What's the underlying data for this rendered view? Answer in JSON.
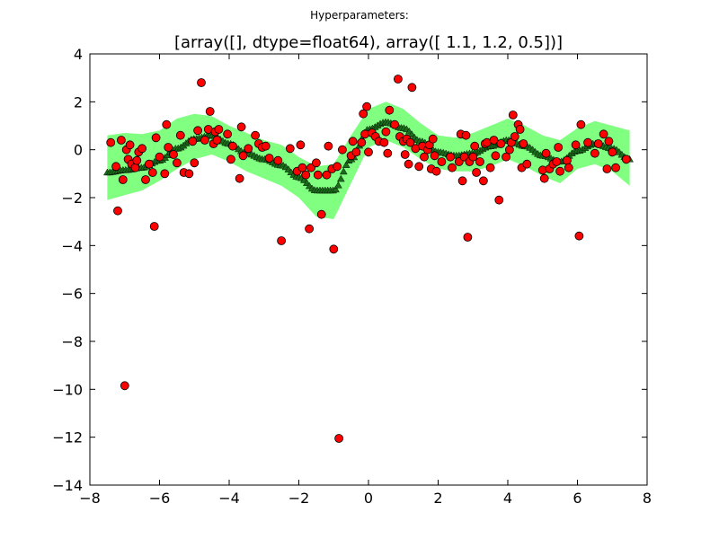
{
  "figure": {
    "suptitle": "Hyperparameters:",
    "title": "[array([], dtype=float64), array([ 1.1,  1.2,  0.5])]"
  },
  "chart_data": {
    "type": "scatter",
    "xlim": [
      -8,
      8
    ],
    "ylim": [
      -14,
      4
    ],
    "xticks": [
      -8,
      -6,
      -4,
      -2,
      0,
      2,
      4,
      6,
      8
    ],
    "xtick_labels": [
      "−8",
      "−6",
      "−4",
      "−2",
      "0",
      "2",
      "4",
      "6",
      "8"
    ],
    "yticks": [
      4,
      2,
      0,
      -2,
      -4,
      -6,
      -8,
      -10,
      -12,
      -14
    ],
    "ytick_labels": [
      "4",
      "2",
      "0",
      "−2",
      "−4",
      "−6",
      "−8",
      "−10",
      "−12",
      "−14"
    ],
    "grid": false,
    "band_color": "#80ff80",
    "prediction_color": "#1a6b1a",
    "point_color": "#ff0000",
    "band": {
      "x": [
        -7.5,
        -7.0,
        -6.5,
        -6.0,
        -5.5,
        -5.0,
        -4.5,
        -4.0,
        -3.5,
        -3.0,
        -2.5,
        -2.0,
        -1.5,
        -1.0,
        -0.5,
        0.0,
        0.5,
        1.0,
        1.5,
        2.0,
        2.5,
        3.0,
        3.5,
        4.0,
        4.5,
        5.0,
        5.5,
        6.0,
        6.5,
        7.0,
        7.5
      ],
      "upper": [
        0.6,
        0.7,
        0.65,
        0.8,
        1.3,
        1.5,
        1.4,
        1.0,
        0.7,
        0.4,
        0.2,
        -0.3,
        -0.7,
        -0.6,
        0.6,
        1.7,
        2.0,
        1.7,
        1.1,
        0.6,
        0.5,
        0.7,
        1.0,
        1.3,
        1.0,
        0.6,
        0.4,
        0.9,
        1.2,
        1.0,
        0.8
      ],
      "lower": [
        -2.1,
        -1.9,
        -1.7,
        -1.3,
        -0.8,
        -0.4,
        -0.2,
        -0.5,
        -0.9,
        -1.2,
        -1.5,
        -2.0,
        -2.8,
        -2.9,
        -1.4,
        0.1,
        0.4,
        0.1,
        -0.4,
        -0.8,
        -0.9,
        -0.9,
        -0.7,
        -0.4,
        -0.7,
        -1.1,
        -1.4,
        -0.8,
        -0.6,
        -0.9,
        -1.5
      ]
    },
    "prediction": {
      "x": [
        -7.5,
        -7.0,
        -6.5,
        -6.0,
        -5.5,
        -5.0,
        -4.5,
        -4.0,
        -3.5,
        -3.0,
        -2.5,
        -2.0,
        -1.5,
        -1.0,
        -0.5,
        0.0,
        0.5,
        1.0,
        1.5,
        2.0,
        2.5,
        3.0,
        3.5,
        4.0,
        4.5,
        5.0,
        5.5,
        6.0,
        6.5,
        7.0,
        7.5
      ],
      "y": [
        -0.95,
        -0.85,
        -0.75,
        -0.45,
        0.05,
        0.45,
        0.6,
        0.25,
        -0.15,
        -0.4,
        -0.65,
        -1.15,
        -1.7,
        -1.7,
        -0.4,
        0.85,
        1.15,
        0.9,
        0.35,
        -0.1,
        -0.25,
        -0.15,
        0.15,
        0.4,
        0.15,
        -0.25,
        -0.5,
        -0.05,
        0.25,
        0.05,
        -0.4
      ]
    },
    "points": [
      {
        "x": -7.4,
        "y": 0.3
      },
      {
        "x": -7.25,
        "y": -0.7
      },
      {
        "x": -7.2,
        "y": -2.55
      },
      {
        "x": -7.1,
        "y": 0.4
      },
      {
        "x": -7.05,
        "y": -1.25
      },
      {
        "x": -7.0,
        "y": -9.85
      },
      {
        "x": -6.95,
        "y": 0.0
      },
      {
        "x": -6.9,
        "y": -0.4
      },
      {
        "x": -6.85,
        "y": 0.2
      },
      {
        "x": -6.8,
        "y": -0.6
      },
      {
        "x": -6.7,
        "y": -0.75
      },
      {
        "x": -6.65,
        "y": -0.45
      },
      {
        "x": -6.6,
        "y": -0.1
      },
      {
        "x": -6.5,
        "y": 0.05
      },
      {
        "x": -6.4,
        "y": -1.25
      },
      {
        "x": -6.3,
        "y": -0.6
      },
      {
        "x": -6.2,
        "y": -0.95
      },
      {
        "x": -6.15,
        "y": -3.2
      },
      {
        "x": -6.1,
        "y": 0.5
      },
      {
        "x": -6.0,
        "y": -0.3
      },
      {
        "x": -5.85,
        "y": -1.0
      },
      {
        "x": -5.8,
        "y": 1.05
      },
      {
        "x": -5.75,
        "y": 0.1
      },
      {
        "x": -5.6,
        "y": -0.2
      },
      {
        "x": -5.5,
        "y": -0.55
      },
      {
        "x": -5.4,
        "y": 0.6
      },
      {
        "x": -5.3,
        "y": -0.95
      },
      {
        "x": -5.15,
        "y": -1.0
      },
      {
        "x": -5.05,
        "y": 0.35
      },
      {
        "x": -5.0,
        "y": -0.55
      },
      {
        "x": -4.9,
        "y": 0.8
      },
      {
        "x": -4.8,
        "y": 2.8
      },
      {
        "x": -4.7,
        "y": 0.4
      },
      {
        "x": -4.6,
        "y": 0.85
      },
      {
        "x": -4.55,
        "y": 1.6
      },
      {
        "x": -4.45,
        "y": 0.25
      },
      {
        "x": -4.4,
        "y": 0.75
      },
      {
        "x": -4.35,
        "y": 0.4
      },
      {
        "x": -4.3,
        "y": 0.85
      },
      {
        "x": -4.05,
        "y": 0.65
      },
      {
        "x": -3.95,
        "y": -0.4
      },
      {
        "x": -3.9,
        "y": 0.15
      },
      {
        "x": -3.7,
        "y": -1.2
      },
      {
        "x": -3.65,
        "y": 0.95
      },
      {
        "x": -3.6,
        "y": -0.25
      },
      {
        "x": -3.45,
        "y": 0.05
      },
      {
        "x": -3.25,
        "y": 0.6
      },
      {
        "x": -3.15,
        "y": 0.25
      },
      {
        "x": -3.05,
        "y": 0.1
      },
      {
        "x": -2.95,
        "y": 0.15
      },
      {
        "x": -2.85,
        "y": -0.35
      },
      {
        "x": -2.6,
        "y": -0.45
      },
      {
        "x": -2.5,
        "y": -3.8
      },
      {
        "x": -2.25,
        "y": 0.05
      },
      {
        "x": -2.05,
        "y": -0.9
      },
      {
        "x": -1.95,
        "y": 0.2
      },
      {
        "x": -1.9,
        "y": -0.75
      },
      {
        "x": -1.8,
        "y": -1.05
      },
      {
        "x": -1.7,
        "y": -3.3
      },
      {
        "x": -1.65,
        "y": -0.75
      },
      {
        "x": -1.5,
        "y": -0.55
      },
      {
        "x": -1.45,
        "y": -1.05
      },
      {
        "x": -1.35,
        "y": -2.7
      },
      {
        "x": -1.2,
        "y": -1.05
      },
      {
        "x": -1.15,
        "y": 0.15
      },
      {
        "x": -1.05,
        "y": -0.8
      },
      {
        "x": -1.0,
        "y": -4.15
      },
      {
        "x": -0.9,
        "y": -0.7
      },
      {
        "x": -0.85,
        "y": -12.05
      },
      {
        "x": -0.75,
        "y": 0.0
      },
      {
        "x": -0.5,
        "y": -0.25
      },
      {
        "x": -0.45,
        "y": 0.35
      },
      {
        "x": -0.35,
        "y": -0.1
      },
      {
        "x": -0.2,
        "y": 0.3
      },
      {
        "x": -0.15,
        "y": 1.5
      },
      {
        "x": -0.1,
        "y": 0.65
      },
      {
        "x": -0.05,
        "y": 1.8
      },
      {
        "x": 0.0,
        "y": -0.1
      },
      {
        "x": 0.1,
        "y": 0.7
      },
      {
        "x": 0.2,
        "y": 0.55
      },
      {
        "x": 0.3,
        "y": 0.35
      },
      {
        "x": 0.45,
        "y": 0.3
      },
      {
        "x": 0.5,
        "y": 0.75
      },
      {
        "x": 0.55,
        "y": -0.15
      },
      {
        "x": 0.6,
        "y": 1.65
      },
      {
        "x": 0.75,
        "y": 1.05
      },
      {
        "x": 0.85,
        "y": 2.95
      },
      {
        "x": 0.9,
        "y": 0.55
      },
      {
        "x": 1.0,
        "y": 0.35
      },
      {
        "x": 1.05,
        "y": -0.2
      },
      {
        "x": 1.1,
        "y": 0.45
      },
      {
        "x": 1.15,
        "y": -0.6
      },
      {
        "x": 1.2,
        "y": 0.3
      },
      {
        "x": 1.25,
        "y": 2.6
      },
      {
        "x": 1.35,
        "y": 0.05
      },
      {
        "x": 1.45,
        "y": -0.7
      },
      {
        "x": 1.55,
        "y": 0.15
      },
      {
        "x": 1.6,
        "y": -0.3
      },
      {
        "x": 1.7,
        "y": 0.0
      },
      {
        "x": 1.75,
        "y": 0.2
      },
      {
        "x": 1.8,
        "y": -0.8
      },
      {
        "x": 1.85,
        "y": 0.45
      },
      {
        "x": 1.9,
        "y": -0.25
      },
      {
        "x": 1.95,
        "y": -0.9
      },
      {
        "x": 2.1,
        "y": -0.5
      },
      {
        "x": 2.35,
        "y": -0.3
      },
      {
        "x": 2.4,
        "y": -0.75
      },
      {
        "x": 2.6,
        "y": -0.5
      },
      {
        "x": 2.65,
        "y": 0.65
      },
      {
        "x": 2.7,
        "y": -1.3
      },
      {
        "x": 2.75,
        "y": -0.3
      },
      {
        "x": 2.8,
        "y": 0.6
      },
      {
        "x": 2.85,
        "y": -3.65
      },
      {
        "x": 2.9,
        "y": -0.5
      },
      {
        "x": 3.0,
        "y": -0.3
      },
      {
        "x": 3.05,
        "y": 0.15
      },
      {
        "x": 3.1,
        "y": -0.95
      },
      {
        "x": 3.2,
        "y": -0.5
      },
      {
        "x": 3.3,
        "y": -1.3
      },
      {
        "x": 3.35,
        "y": 0.25
      },
      {
        "x": 3.4,
        "y": 0.3
      },
      {
        "x": 3.5,
        "y": -0.75
      },
      {
        "x": 3.6,
        "y": 0.4
      },
      {
        "x": 3.65,
        "y": -0.25
      },
      {
        "x": 3.75,
        "y": -2.1
      },
      {
        "x": 3.8,
        "y": 0.25
      },
      {
        "x": 3.95,
        "y": -0.3
      },
      {
        "x": 4.05,
        "y": 0.0
      },
      {
        "x": 4.1,
        "y": 0.3
      },
      {
        "x": 4.15,
        "y": 1.45
      },
      {
        "x": 4.2,
        "y": 0.55
      },
      {
        "x": 4.3,
        "y": 1.05
      },
      {
        "x": 4.35,
        "y": 0.85
      },
      {
        "x": 4.4,
        "y": -0.75
      },
      {
        "x": 4.45,
        "y": 0.25
      },
      {
        "x": 4.55,
        "y": -0.6
      },
      {
        "x": 5.0,
        "y": -0.85
      },
      {
        "x": 5.05,
        "y": -1.2
      },
      {
        "x": 5.1,
        "y": -0.15
      },
      {
        "x": 5.2,
        "y": -0.8
      },
      {
        "x": 5.3,
        "y": -0.6
      },
      {
        "x": 5.4,
        "y": -0.5
      },
      {
        "x": 5.45,
        "y": 0.1
      },
      {
        "x": 5.5,
        "y": -0.9
      },
      {
        "x": 5.7,
        "y": -0.45
      },
      {
        "x": 5.75,
        "y": -0.75
      },
      {
        "x": 5.95,
        "y": 0.2
      },
      {
        "x": 6.05,
        "y": -3.6
      },
      {
        "x": 6.1,
        "y": 1.05
      },
      {
        "x": 6.3,
        "y": 0.3
      },
      {
        "x": 6.5,
        "y": -0.15
      },
      {
        "x": 6.6,
        "y": 0.25
      },
      {
        "x": 6.75,
        "y": 0.65
      },
      {
        "x": 6.85,
        "y": -0.8
      },
      {
        "x": 6.9,
        "y": 0.35
      },
      {
        "x": 7.0,
        "y": -0.1
      },
      {
        "x": 7.1,
        "y": -0.75
      },
      {
        "x": 7.4,
        "y": -0.4
      }
    ]
  }
}
